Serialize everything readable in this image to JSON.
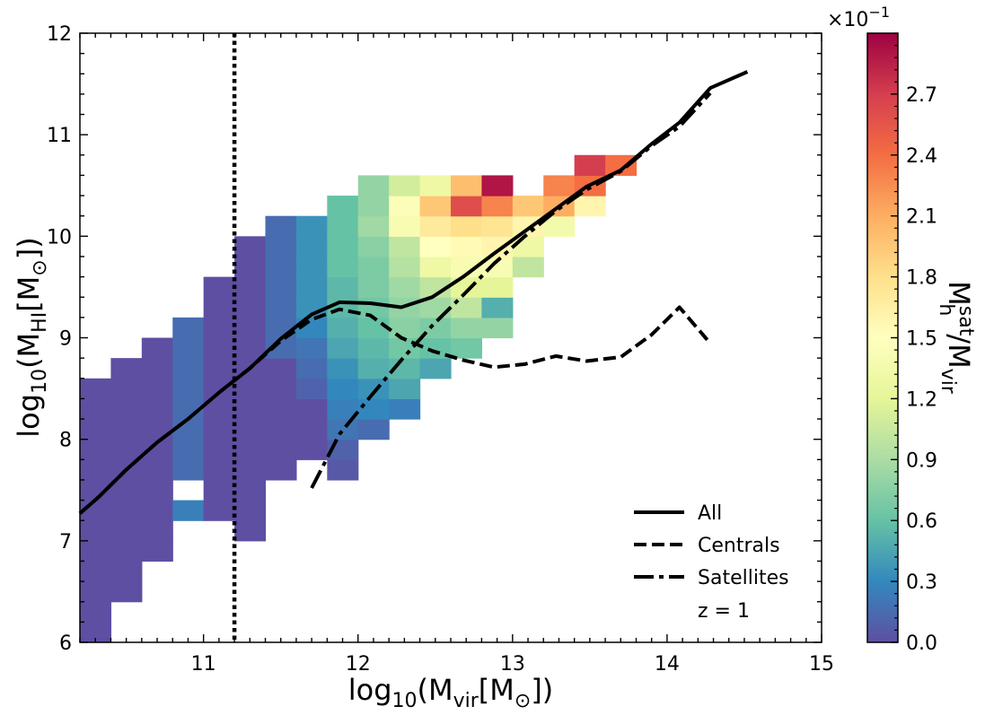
{
  "chart_data": {
    "type": "heatmap",
    "title": "",
    "xlabel": {
      "prefix": "log",
      "sub1": "10",
      "mid": "(M",
      "sub2": "vir",
      "mid2": "[M",
      "sub3": "⊙",
      "suffix": "])"
    },
    "ylabel": {
      "prefix": "log",
      "sub1": "10",
      "mid": "(M",
      "sub2": "HI",
      "mid2": "[M",
      "sub3": "⊙",
      "suffix": "])"
    },
    "xlim": [
      10.2,
      15
    ],
    "ylim": [
      6,
      12
    ],
    "xticks": [
      11,
      12,
      13,
      14,
      15
    ],
    "yticks": [
      6,
      7,
      8,
      9,
      10,
      11,
      12
    ],
    "xtick_labels": [
      "11",
      "12",
      "13",
      "14",
      "15"
    ],
    "ytick_labels": [
      "6",
      "7",
      "8",
      "9",
      "10",
      "11",
      "12"
    ],
    "vline_x": 11.2,
    "bin_width_x": 0.2,
    "bin_height_y": 0.2,
    "colorbar": {
      "label_main": "M",
      "label_sup": "sat",
      "label_sub": "h",
      "label_rest": "/M",
      "label_rest_sub": "vir",
      "multiplier": "×10",
      "multiplier_exp": "−1",
      "min": 0.0,
      "max": 3.0,
      "ticks": [
        0.0,
        0.3,
        0.6,
        0.9,
        1.2,
        1.5,
        1.8,
        2.1,
        2.4,
        2.7
      ],
      "tick_labels": [
        "0.0",
        "0.3",
        "0.6",
        "0.9",
        "1.2",
        "1.5",
        "1.8",
        "2.1",
        "2.4",
        "2.7"
      ],
      "colormap": "Spectral_r"
    },
    "bins": [
      [
        10.2,
        6.0,
        0.0
      ],
      [
        10.2,
        6.2,
        0.0
      ],
      [
        10.2,
        6.4,
        0.0
      ],
      [
        10.2,
        6.6,
        0.0
      ],
      [
        10.2,
        6.8,
        0.0
      ],
      [
        10.2,
        7.0,
        0.0
      ],
      [
        10.2,
        7.2,
        0.0
      ],
      [
        10.2,
        7.4,
        0.0
      ],
      [
        10.2,
        7.6,
        0.0
      ],
      [
        10.2,
        7.8,
        0.0
      ],
      [
        10.2,
        8.0,
        0.0
      ],
      [
        10.2,
        8.2,
        0.0
      ],
      [
        10.2,
        8.4,
        0.0
      ],
      [
        10.4,
        6.4,
        0.0
      ],
      [
        10.4,
        6.6,
        0.0
      ],
      [
        10.4,
        6.8,
        0.0
      ],
      [
        10.4,
        7.0,
        0.0
      ],
      [
        10.4,
        7.2,
        0.0
      ],
      [
        10.4,
        7.4,
        0.0
      ],
      [
        10.4,
        7.6,
        0.0
      ],
      [
        10.4,
        7.8,
        0.0
      ],
      [
        10.4,
        8.0,
        0.0
      ],
      [
        10.4,
        8.2,
        0.0
      ],
      [
        10.4,
        8.4,
        0.0
      ],
      [
        10.4,
        8.6,
        0.0
      ],
      [
        10.6,
        6.8,
        0.0
      ],
      [
        10.6,
        7.0,
        0.0
      ],
      [
        10.6,
        7.2,
        0.0
      ],
      [
        10.6,
        7.4,
        0.0
      ],
      [
        10.6,
        7.6,
        0.0
      ],
      [
        10.6,
        7.8,
        0.0
      ],
      [
        10.6,
        8.0,
        0.0
      ],
      [
        10.6,
        8.2,
        0.0
      ],
      [
        10.6,
        8.4,
        0.0
      ],
      [
        10.6,
        8.6,
        0.0
      ],
      [
        10.6,
        8.8,
        0.0
      ],
      [
        10.8,
        7.2,
        0.25
      ],
      [
        10.8,
        7.6,
        0.15
      ],
      [
        10.8,
        7.8,
        0.15
      ],
      [
        10.8,
        8.0,
        0.15
      ],
      [
        10.8,
        8.2,
        0.15
      ],
      [
        10.8,
        8.4,
        0.15
      ],
      [
        10.8,
        8.6,
        0.15
      ],
      [
        10.8,
        8.8,
        0.15
      ],
      [
        10.8,
        9.0,
        0.15
      ],
      [
        11.0,
        7.2,
        0.0
      ],
      [
        11.0,
        7.4,
        0.0
      ],
      [
        11.0,
        7.6,
        0.0
      ],
      [
        11.0,
        7.8,
        0.0
      ],
      [
        11.0,
        8.0,
        0.0
      ],
      [
        11.0,
        8.2,
        0.0
      ],
      [
        11.0,
        8.4,
        0.0
      ],
      [
        11.0,
        8.6,
        0.0
      ],
      [
        11.0,
        8.8,
        0.0
      ],
      [
        11.0,
        9.0,
        0.0
      ],
      [
        11.0,
        9.2,
        0.0
      ],
      [
        11.0,
        9.4,
        0.0
      ],
      [
        11.2,
        7.0,
        0.0
      ],
      [
        11.2,
        7.2,
        0.0
      ],
      [
        11.2,
        7.4,
        0.0
      ],
      [
        11.2,
        7.6,
        0.0
      ],
      [
        11.2,
        7.8,
        0.0
      ],
      [
        11.2,
        8.0,
        0.0
      ],
      [
        11.2,
        8.2,
        0.0
      ],
      [
        11.2,
        8.4,
        0.0
      ],
      [
        11.2,
        8.6,
        0.0
      ],
      [
        11.2,
        8.8,
        0.0
      ],
      [
        11.2,
        9.0,
        0.0
      ],
      [
        11.2,
        9.2,
        0.0
      ],
      [
        11.2,
        9.4,
        0.0
      ],
      [
        11.2,
        9.6,
        0.0
      ],
      [
        11.2,
        9.8,
        0.0
      ],
      [
        11.4,
        7.6,
        0.0
      ],
      [
        11.4,
        7.8,
        0.0
      ],
      [
        11.4,
        8.0,
        0.0
      ],
      [
        11.4,
        8.2,
        0.0
      ],
      [
        11.4,
        8.4,
        0.0
      ],
      [
        11.4,
        8.6,
        0.0
      ],
      [
        11.4,
        8.8,
        0.15
      ],
      [
        11.4,
        9.0,
        0.15
      ],
      [
        11.4,
        9.2,
        0.15
      ],
      [
        11.4,
        9.4,
        0.15
      ],
      [
        11.4,
        9.6,
        0.15
      ],
      [
        11.4,
        9.8,
        0.15
      ],
      [
        11.4,
        10.0,
        0.15
      ],
      [
        11.6,
        7.8,
        0.0
      ],
      [
        11.6,
        8.0,
        0.0
      ],
      [
        11.6,
        8.2,
        0.0
      ],
      [
        11.6,
        8.4,
        0.1
      ],
      [
        11.6,
        8.6,
        0.15
      ],
      [
        11.6,
        8.8,
        0.2
      ],
      [
        11.6,
        9.0,
        0.3
      ],
      [
        11.6,
        9.2,
        0.35
      ],
      [
        11.6,
        9.4,
        0.35
      ],
      [
        11.6,
        9.6,
        0.35
      ],
      [
        11.6,
        9.8,
        0.35
      ],
      [
        11.6,
        10.0,
        0.35
      ],
      [
        11.8,
        7.6,
        0.05
      ],
      [
        11.8,
        7.8,
        0.1
      ],
      [
        11.8,
        8.0,
        0.2
      ],
      [
        11.8,
        8.2,
        0.25
      ],
      [
        11.8,
        8.4,
        0.3
      ],
      [
        11.8,
        8.6,
        0.35
      ],
      [
        11.8,
        8.8,
        0.45
      ],
      [
        11.8,
        9.0,
        0.5
      ],
      [
        11.8,
        9.2,
        0.55
      ],
      [
        11.8,
        9.4,
        0.55
      ],
      [
        11.8,
        9.6,
        0.6
      ],
      [
        11.8,
        9.8,
        0.6
      ],
      [
        11.8,
        10.0,
        0.6
      ],
      [
        11.8,
        10.2,
        0.6
      ],
      [
        12.0,
        8.0,
        0.15
      ],
      [
        12.0,
        8.2,
        0.3
      ],
      [
        12.0,
        8.4,
        0.35
      ],
      [
        12.0,
        8.6,
        0.5
      ],
      [
        12.0,
        8.8,
        0.55
      ],
      [
        12.0,
        9.0,
        0.6
      ],
      [
        12.0,
        9.2,
        0.65
      ],
      [
        12.0,
        9.4,
        0.7
      ],
      [
        12.0,
        9.6,
        0.7
      ],
      [
        12.0,
        9.8,
        0.75
      ],
      [
        12.0,
        10.0,
        0.85
      ],
      [
        12.0,
        10.2,
        0.8
      ],
      [
        12.0,
        10.4,
        0.8
      ],
      [
        12.2,
        8.2,
        0.25
      ],
      [
        12.2,
        8.4,
        0.45
      ],
      [
        12.2,
        8.6,
        0.55
      ],
      [
        12.2,
        8.8,
        0.65
      ],
      [
        12.2,
        9.0,
        0.75
      ],
      [
        12.2,
        9.2,
        0.8
      ],
      [
        12.2,
        9.4,
        0.85
      ],
      [
        12.2,
        9.6,
        0.95
      ],
      [
        12.2,
        9.8,
        1.0
      ],
      [
        12.2,
        10.0,
        1.4
      ],
      [
        12.2,
        10.2,
        1.45
      ],
      [
        12.2,
        10.4,
        1.1
      ],
      [
        12.4,
        8.6,
        0.45
      ],
      [
        12.4,
        8.8,
        0.6
      ],
      [
        12.4,
        9.0,
        0.7
      ],
      [
        12.4,
        9.2,
        0.85
      ],
      [
        12.4,
        9.4,
        1.0
      ],
      [
        12.4,
        9.6,
        1.3
      ],
      [
        12.4,
        9.8,
        1.5
      ],
      [
        12.4,
        10.0,
        1.7
      ],
      [
        12.4,
        10.2,
        1.95
      ],
      [
        12.4,
        10.4,
        1.3
      ],
      [
        12.6,
        8.8,
        0.65
      ],
      [
        12.6,
        9.0,
        0.8
      ],
      [
        12.6,
        9.2,
        1.0
      ],
      [
        12.6,
        9.4,
        1.2
      ],
      [
        12.6,
        9.6,
        1.4
      ],
      [
        12.6,
        9.8,
        1.55
      ],
      [
        12.6,
        10.0,
        1.8
      ],
      [
        12.6,
        10.2,
        2.6
      ],
      [
        12.6,
        10.4,
        2.0
      ],
      [
        12.8,
        9.0,
        0.8
      ],
      [
        12.8,
        9.2,
        0.5
      ],
      [
        12.8,
        9.4,
        1.2
      ],
      [
        12.8,
        9.6,
        1.4
      ],
      [
        12.8,
        9.8,
        1.6
      ],
      [
        12.8,
        10.0,
        1.75
      ],
      [
        12.8,
        10.2,
        2.3
      ],
      [
        12.8,
        10.4,
        2.9
      ],
      [
        13.0,
        9.6,
        1.0
      ],
      [
        13.0,
        9.8,
        1.3
      ],
      [
        13.0,
        10.0,
        1.6
      ],
      [
        13.0,
        10.2,
        1.95
      ],
      [
        13.2,
        10.0,
        1.35
      ],
      [
        13.2,
        10.2,
        2.1
      ],
      [
        13.2,
        10.4,
        2.3
      ],
      [
        13.4,
        10.2,
        1.6
      ],
      [
        13.4,
        10.4,
        2.4
      ],
      [
        13.4,
        10.6,
        2.7
      ],
      [
        13.6,
        10.6,
        2.4
      ]
    ],
    "series": [
      {
        "name": "All",
        "style": "solid",
        "x": [
          10.2,
          10.32,
          10.5,
          10.7,
          10.9,
          11.1,
          11.3,
          11.5,
          11.7,
          11.88,
          12.08,
          12.28,
          12.48,
          12.68,
          12.88,
          13.08,
          13.28,
          13.48,
          13.7,
          13.9,
          14.08,
          14.28,
          14.52
        ],
        "y": [
          7.27,
          7.43,
          7.7,
          7.97,
          8.2,
          8.46,
          8.7,
          8.99,
          9.23,
          9.35,
          9.34,
          9.3,
          9.4,
          9.6,
          9.83,
          10.05,
          10.27,
          10.49,
          10.65,
          10.91,
          11.12,
          11.46,
          11.62
        ]
      },
      {
        "name": "Centrals",
        "style": "dashed",
        "x": [
          10.2,
          10.32,
          10.5,
          10.7,
          10.9,
          11.1,
          11.3,
          11.5,
          11.7,
          11.88,
          12.08,
          12.28,
          12.48,
          12.68,
          12.88,
          13.08,
          13.28,
          13.48,
          13.7,
          13.9,
          14.08,
          14.26
        ],
        "y": [
          7.27,
          7.43,
          7.7,
          7.97,
          8.2,
          8.46,
          8.7,
          8.97,
          9.18,
          9.28,
          9.22,
          9.0,
          8.87,
          8.78,
          8.71,
          8.74,
          8.82,
          8.77,
          8.81,
          9.03,
          9.3,
          8.98
        ]
      },
      {
        "name": "Satellites",
        "style": "dashdot",
        "x": [
          11.7,
          11.88,
          12.08,
          12.28,
          12.48,
          12.68,
          12.88,
          13.08,
          13.28,
          13.48,
          13.7,
          13.9,
          14.08,
          14.28
        ],
        "y": [
          7.52,
          8.05,
          8.42,
          8.78,
          9.12,
          9.42,
          9.73,
          10.0,
          10.25,
          10.46,
          10.64,
          10.89,
          11.08,
          11.41
        ]
      }
    ],
    "legend": {
      "location": "lower-right",
      "extra_label": "z = 1"
    }
  }
}
